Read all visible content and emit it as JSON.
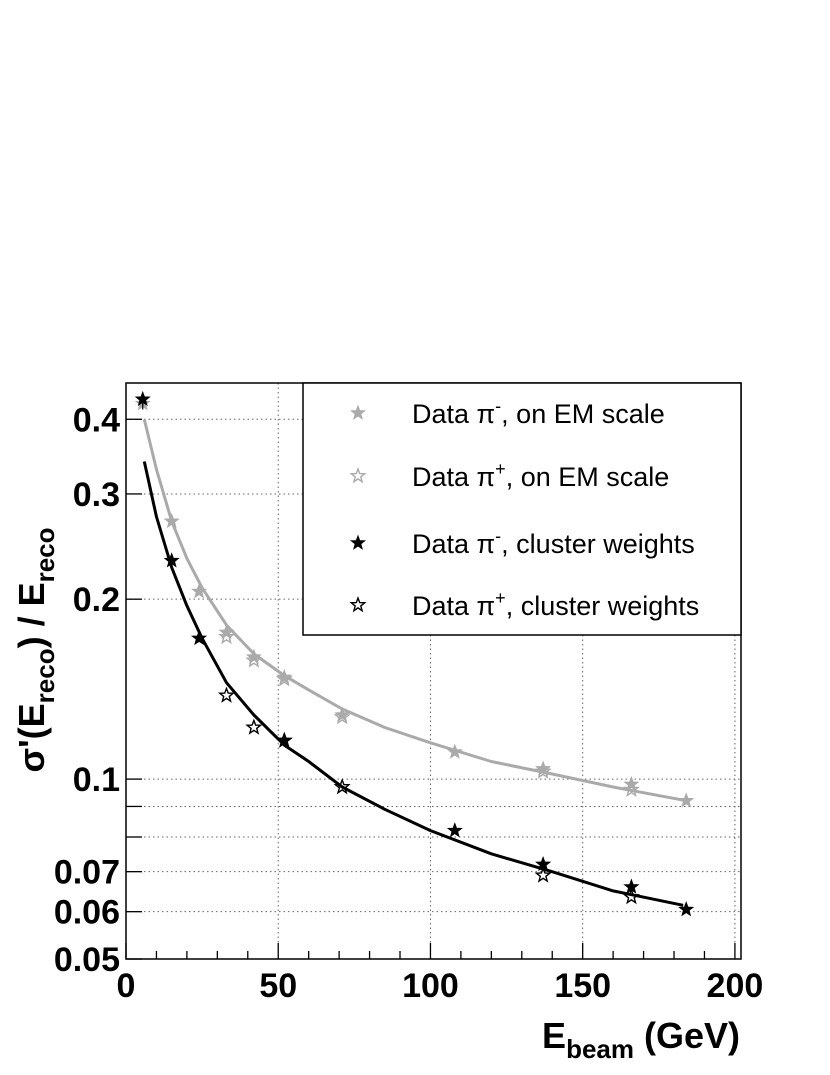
{
  "chart_data": {
    "type": "scatter",
    "xlabel_main": "E",
    "xlabel_sub": "beam",
    "xlabel_unit": " (GeV)",
    "ylabel_pre": "σ'(E",
    "ylabel_sub1": "reco",
    "ylabel_mid": ") / E",
    "ylabel_sub2": "reco",
    "xlim": [
      0,
      202
    ],
    "ylim": [
      0.05,
      0.46
    ],
    "y_scale": "log",
    "grid": true,
    "x_ticks": [
      0,
      50,
      100,
      150,
      200
    ],
    "x_tick_labels": [
      "0",
      "50",
      "100",
      "150",
      "200"
    ],
    "y_ticks": [
      0.05,
      0.06,
      0.07,
      0.1,
      0.2,
      0.3,
      0.4
    ],
    "y_tick_labels": [
      "0.05",
      "0.06",
      "0.07",
      "0.1",
      "0.2",
      "0.3",
      "0.4"
    ],
    "y_grid_lines": [
      0.06,
      0.07,
      0.08,
      0.09,
      0.1,
      0.2,
      0.3,
      0.4
    ],
    "x_grid_lines": [
      50,
      100,
      150,
      200
    ],
    "legend_position": "top-right",
    "series": [
      {
        "name": "Data π⁻, on EM scale",
        "legend_base": "Data π",
        "legend_sup": "-",
        "legend_rest": ", on EM scale",
        "color": "#aaaaaa",
        "marker": "filled-star",
        "points": [
          [
            5.5,
            0.425
          ],
          [
            15,
            0.27
          ],
          [
            24,
            0.206
          ],
          [
            33,
            0.176
          ],
          [
            42,
            0.16
          ],
          [
            52,
            0.148
          ],
          [
            71,
            0.128
          ],
          [
            108,
            0.111
          ],
          [
            137,
            0.104
          ],
          [
            166,
            0.098
          ],
          [
            184,
            0.092
          ]
        ]
      },
      {
        "name": "Data π⁺, on EM scale",
        "legend_base": "Data π",
        "legend_sup": "+",
        "legend_rest": ", on EM scale",
        "color": "#aaaaaa",
        "marker": "open-star",
        "points": [
          [
            33,
            0.173
          ],
          [
            42,
            0.158
          ],
          [
            52,
            0.147
          ],
          [
            71,
            0.127
          ],
          [
            137,
            0.103
          ],
          [
            166,
            0.096
          ]
        ]
      },
      {
        "name": "Data π⁻, cluster weights",
        "legend_base": "Data π",
        "legend_sup": "-",
        "legend_rest": ", cluster weights",
        "color": "#000000",
        "marker": "filled-star",
        "points": [
          [
            5.5,
            0.432
          ],
          [
            15,
            0.232
          ],
          [
            24,
            0.172
          ],
          [
            52,
            0.116
          ],
          [
            108,
            0.082
          ],
          [
            137,
            0.072
          ],
          [
            166,
            0.066
          ],
          [
            184,
            0.0605
          ]
        ]
      },
      {
        "name": "Data π⁺, cluster weights",
        "legend_base": "Data π",
        "legend_sup": "+",
        "legend_rest": ", cluster weights",
        "color": "#000000",
        "marker": "open-star",
        "points": [
          [
            33,
            0.138
          ],
          [
            42,
            0.122
          ],
          [
            52,
            0.116
          ],
          [
            71,
            0.097
          ],
          [
            137,
            0.069
          ],
          [
            166,
            0.0635
          ]
        ]
      }
    ],
    "fits": [
      {
        "color": "#aaaaaa",
        "x_range": [
          6,
          184
        ],
        "points": [
          [
            6,
            0.4
          ],
          [
            10,
            0.33
          ],
          [
            15,
            0.27
          ],
          [
            20,
            0.234
          ],
          [
            25,
            0.209
          ],
          [
            33,
            0.181
          ],
          [
            42,
            0.162
          ],
          [
            52,
            0.149
          ],
          [
            60,
            0.141
          ],
          [
            71,
            0.131
          ],
          [
            85,
            0.122
          ],
          [
            100,
            0.115
          ],
          [
            120,
            0.107
          ],
          [
            140,
            0.102
          ],
          [
            160,
            0.097
          ],
          [
            184,
            0.092
          ]
        ]
      },
      {
        "color": "#000000",
        "x_range": [
          6,
          183
        ],
        "points": [
          [
            6,
            0.34
          ],
          [
            10,
            0.275
          ],
          [
            15,
            0.226
          ],
          [
            20,
            0.195
          ],
          [
            25,
            0.172
          ],
          [
            33,
            0.145
          ],
          [
            42,
            0.128
          ],
          [
            52,
            0.114
          ],
          [
            60,
            0.107
          ],
          [
            71,
            0.097
          ],
          [
            85,
            0.089
          ],
          [
            100,
            0.082
          ],
          [
            120,
            0.075
          ],
          [
            140,
            0.07
          ],
          [
            160,
            0.065
          ],
          [
            183,
            0.0615
          ]
        ]
      }
    ]
  }
}
